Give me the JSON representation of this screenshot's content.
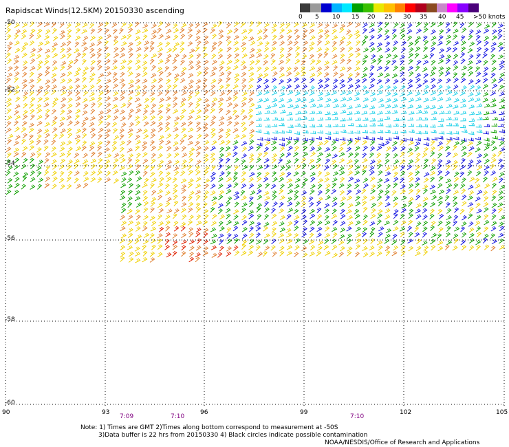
{
  "title": "Rapidscat Winds(12.5KM) 20150330 ascending",
  "colorbar": {
    "colors": [
      "#3a3a3a",
      "#9a9a9a",
      "#0000d0",
      "#00b4ff",
      "#00e8ff",
      "#00a000",
      "#38c000",
      "#e8e800",
      "#ffc000",
      "#ff8000",
      "#ff0000",
      "#b0001c",
      "#8a4a20",
      "#c888c8",
      "#ff00ff",
      "#8800ff",
      "#4a007a"
    ],
    "labels": [
      "0",
      "5",
      "10",
      "15",
      "20",
      "25",
      "30",
      "35",
      "40",
      "45",
      ">50 knots"
    ]
  },
  "axes": {
    "x_ticks": [
      "90",
      "93",
      "96",
      "99",
      "102",
      "105"
    ],
    "y_ticks": [
      "-50",
      "-52",
      "-54",
      "-56",
      "-58",
      "-60"
    ]
  },
  "times": [
    "7:09",
    "7:10",
    "7:10"
  ],
  "notes": [
    "Note: 1) Times are GMT 2)Times along bottom correspond to measurement at -50S",
    "3)Data buffer is 22 hrs from 20150330 4) Black circles indicate possible contamination",
    "NOAA/NESDIS/Office of Research and Applications"
  ],
  "wind_field": {
    "description_colors": {
      "orange": "#e08030",
      "yellow": "#f0d000",
      "green": "#10a000",
      "blue": "#1010e0",
      "cyan": "#20d0e8",
      "red": "#e02000",
      "black": "#000000"
    }
  }
}
